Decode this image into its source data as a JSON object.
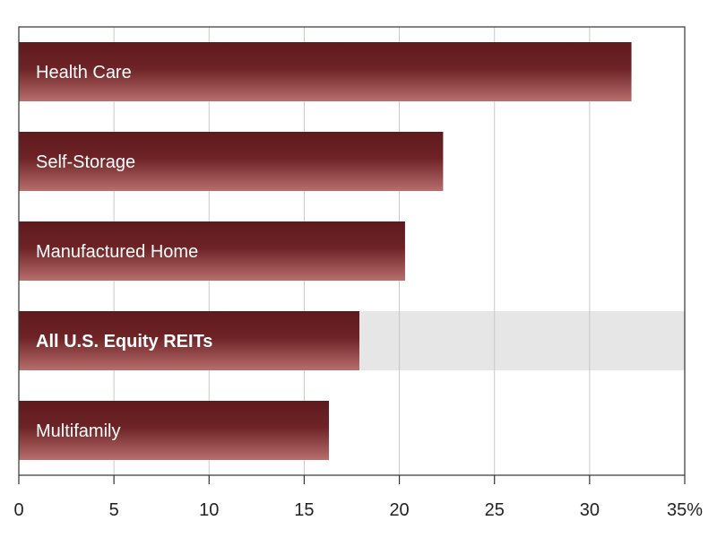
{
  "chart_data": {
    "type": "bar",
    "orientation": "horizontal",
    "categories": [
      "Health Care",
      "Self-Storage",
      "Manufactured Home",
      "All U.S. Equity REITs",
      "Multifamily"
    ],
    "values": [
      32.2,
      22.3,
      20.3,
      17.9,
      16.3
    ],
    "highlight": "All U.S. Equity REITs",
    "xlim": [
      0,
      35
    ],
    "xticks": [
      0,
      5,
      10,
      15,
      20,
      25,
      30,
      35
    ],
    "tick_labels": [
      "0",
      "5",
      "10",
      "15",
      "20",
      "25",
      "30",
      "35%"
    ],
    "grid": true,
    "colors": {
      "bar_top": "#5e1a1d",
      "bar_bottom": "#b86e6c",
      "highlight_band": "#e6e6e6",
      "grid": "#c8c8c8",
      "frame": "#333333"
    }
  }
}
